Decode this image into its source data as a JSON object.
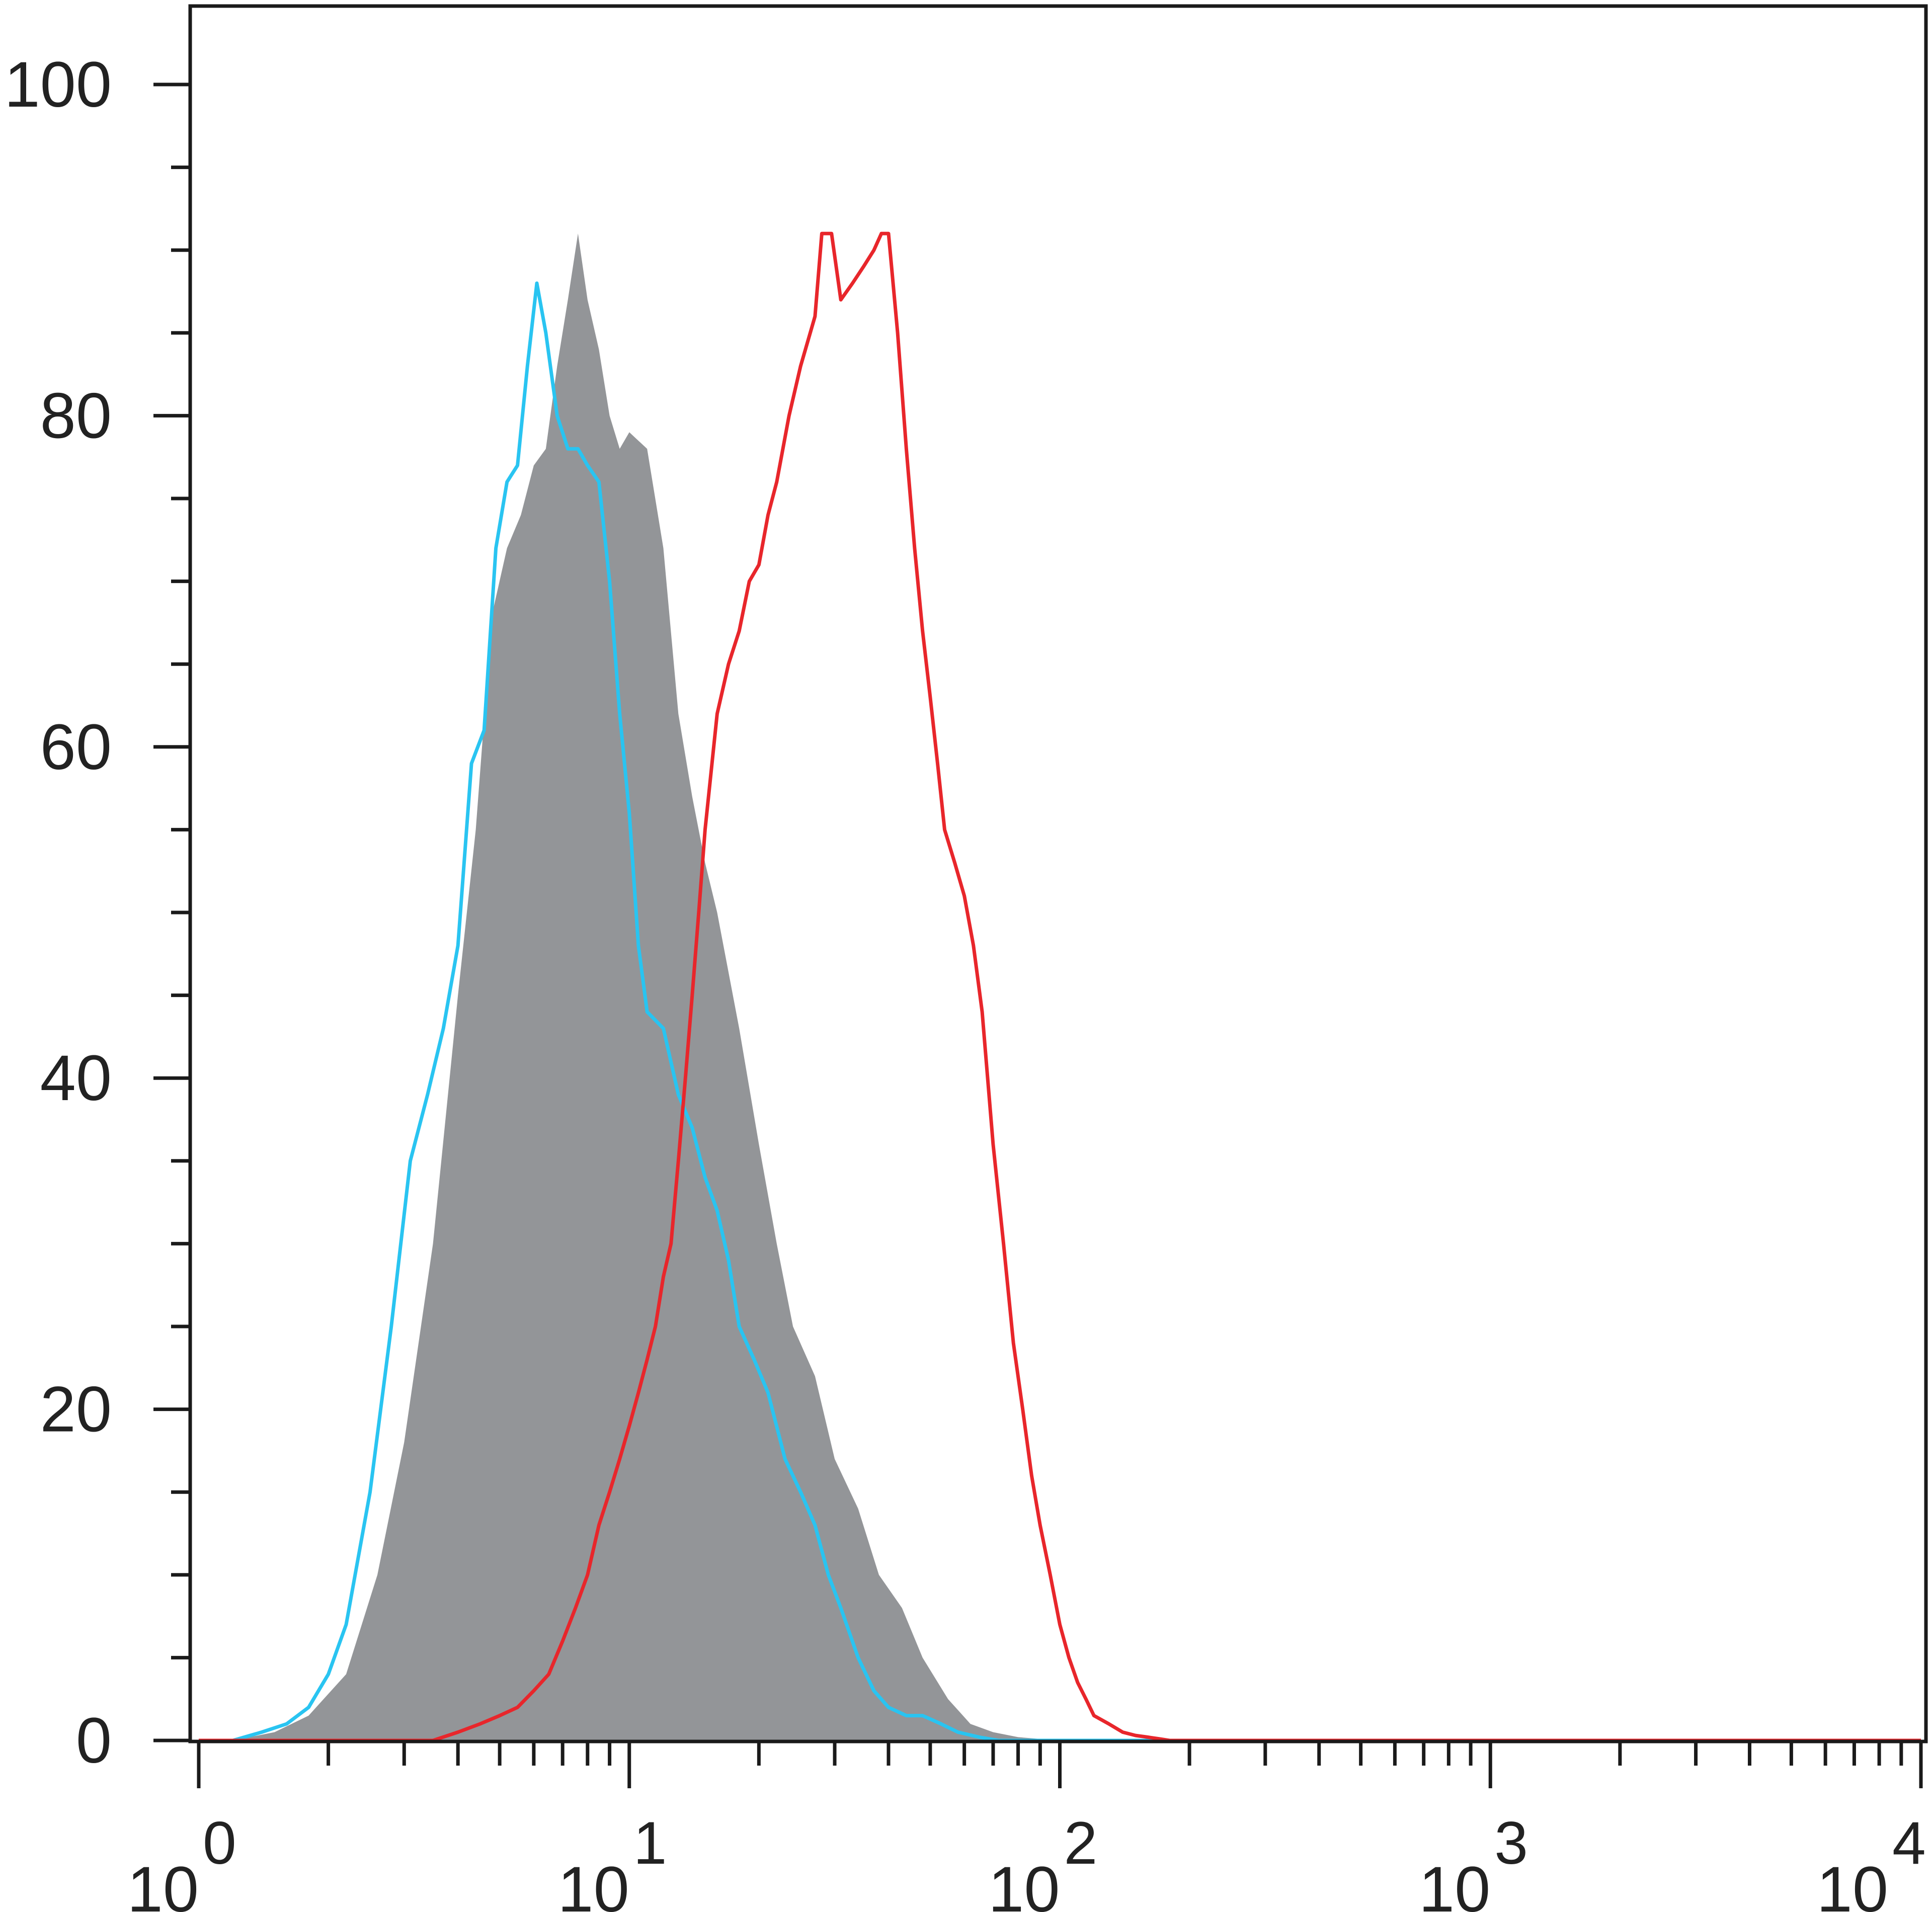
{
  "chart_data": {
    "type": "line",
    "title": "",
    "xlabel": "",
    "ylabel": "",
    "x_scale": "log",
    "xlim": [
      1,
      10000
    ],
    "ylim": [
      -5,
      105
    ],
    "grid": false,
    "legend": "none",
    "y_ticks": [
      {
        "value": 0,
        "label": "0"
      },
      {
        "value": 20,
        "label": "20"
      },
      {
        "value": 40,
        "label": "40"
      },
      {
        "value": 60,
        "label": "60"
      },
      {
        "value": 80,
        "label": "80"
      },
      {
        "value": 100,
        "label": "100"
      }
    ],
    "x_ticks": [
      {
        "value": 1,
        "base": "10",
        "exp": "0"
      },
      {
        "value": 10,
        "base": "10",
        "exp": "1"
      },
      {
        "value": 100,
        "base": "10",
        "exp": "2"
      },
      {
        "value": 1000,
        "base": "10",
        "exp": "3"
      },
      {
        "value": 10000,
        "base": "10",
        "exp": "4"
      }
    ],
    "series": [
      {
        "style": "filled",
        "color": "#939598",
        "x": [
          1.2,
          1.5,
          1.8,
          2.2,
          2.6,
          3.0,
          3.5,
          4.0,
          4.4,
          4.8,
          5.2,
          5.6,
          6.0,
          6.4,
          6.8,
          7.2,
          7.6,
          8.0,
          8.5,
          9.0,
          9.5,
          10.0,
          11.0,
          12.0,
          13.0,
          14.0,
          15.0,
          16.0,
          18.0,
          20.0,
          22.0,
          24.0,
          27.0,
          30.0,
          34.0,
          38.0,
          43.0,
          48.0,
          55.0,
          62.0,
          70.0,
          80.0,
          100.0
        ],
        "y": [
          0,
          0.5,
          1.5,
          4,
          10,
          18,
          30,
          45,
          55,
          68,
          72,
          74,
          77,
          78,
          83,
          87,
          91,
          87,
          84,
          80,
          78,
          79,
          78,
          72,
          62,
          57,
          53,
          50,
          43,
          36,
          30,
          25,
          22,
          17,
          14,
          10,
          8,
          5,
          2.5,
          1,
          0.5,
          0.2,
          0
        ]
      },
      {
        "style": "line",
        "color": "#29c4f1",
        "x": [
          1.2,
          1.4,
          1.6,
          1.8,
          2.0,
          2.2,
          2.5,
          2.8,
          3.1,
          3.4,
          3.7,
          4.0,
          4.3,
          4.6,
          4.9,
          5.2,
          5.5,
          5.8,
          6.1,
          6.4,
          6.8,
          7.2,
          7.6,
          8.0,
          8.5,
          9.0,
          9.5,
          10.0,
          10.5,
          11.0,
          12.0,
          13.0,
          14.0,
          15.0,
          16.0,
          17.0,
          18.0,
          19.5,
          21.0,
          23.0,
          25.0,
          27.0,
          29.0,
          31.0,
          34.0,
          37.0,
          40.0,
          44.0,
          48.0,
          53.0,
          58.0,
          65.0,
          72.0,
          80.0,
          90.0,
          100.0,
          110.0,
          125.0,
          140.0,
          160.0,
          190.0,
          230.0,
          300.0,
          400.0
        ],
        "y": [
          0,
          0.5,
          1,
          2,
          4,
          7,
          15,
          25,
          35,
          39,
          43,
          48,
          59,
          61,
          72,
          76,
          77,
          83,
          88,
          85,
          80,
          78,
          78,
          77,
          76,
          70,
          62,
          56,
          48,
          44,
          43,
          39,
          37,
          34,
          32,
          29,
          25,
          23,
          21,
          17,
          15,
          13,
          10,
          8,
          5,
          3,
          2,
          1.5,
          1.5,
          1,
          0.5,
          0.2,
          0,
          0,
          0,
          0,
          0,
          0,
          0,
          0,
          0,
          0,
          0,
          0
        ]
      },
      {
        "style": "line",
        "color": "#e8262b",
        "x": [
          1,
          3.5,
          4.0,
          4.5,
          5.0,
          5.5,
          6.0,
          6.5,
          7.0,
          7.5,
          8.0,
          8.5,
          9.0,
          9.5,
          10.0,
          10.5,
          11.0,
          11.5,
          12.0,
          12.5,
          13.0,
          13.5,
          14.0,
          14.5,
          15.0,
          16.0,
          17.0,
          18.0,
          19.0,
          20.0,
          21.0,
          22.0,
          23.5,
          25.0,
          27.0,
          28.0,
          29.5,
          31.0,
          33.0,
          35.0,
          37.0,
          38.5,
          40.0,
          42.0,
          44.0,
          46.0,
          48.0,
          50.0,
          52.0,
          54.0,
          57.0,
          60.0,
          63.0,
          66.0,
          70.0,
          74.0,
          78.0,
          82.0,
          86.0,
          90.0,
          95.0,
          100.0,
          105.0,
          110.0,
          115.0,
          120.0,
          130.0,
          140.0,
          150.0,
          160.0,
          170.0,
          180.0,
          195.0,
          210.0,
          230.0,
          260.0,
          300.0,
          350.0,
          400.0,
          10000.0
        ],
        "y": [
          0,
          0,
          0.5,
          1,
          1.5,
          2,
          3,
          4,
          6,
          8,
          10,
          13,
          15,
          17,
          19,
          21,
          23,
          25,
          28,
          30,
          35,
          40,
          45,
          50,
          55,
          62,
          65,
          67,
          70,
          71,
          74,
          76,
          80,
          83,
          86,
          91,
          91,
          87,
          88,
          89,
          90,
          91,
          91,
          85,
          78,
          72,
          67,
          63,
          59,
          55,
          53,
          51,
          48,
          44,
          36,
          30,
          24,
          20,
          16,
          13,
          10,
          7,
          5,
          3.5,
          2.5,
          1.5,
          1.0,
          0.5,
          0.3,
          0.2,
          0.1,
          0,
          0,
          0,
          0,
          0,
          0,
          0,
          0,
          0
        ]
      }
    ]
  }
}
